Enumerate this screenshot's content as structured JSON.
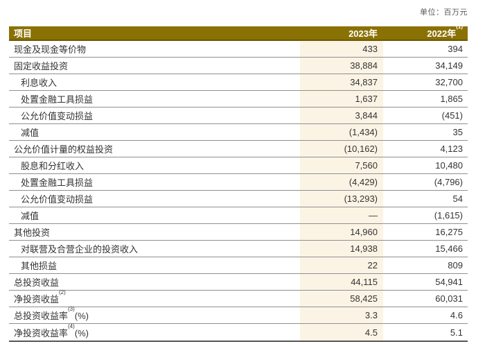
{
  "unit_note": "单位：百万元",
  "table": {
    "header": {
      "item": "项目",
      "col_2023": "2023年",
      "col_2022": "2022年",
      "col_2022_sup": "(1)"
    },
    "rows": [
      {
        "label": "现金及现金等价物",
        "sup": "",
        "suffix": "",
        "indent": false,
        "v2023": "433",
        "v2022": "394"
      },
      {
        "label": "固定收益投资",
        "sup": "",
        "suffix": "",
        "indent": false,
        "v2023": "38,884",
        "v2022": "34,149"
      },
      {
        "label": "利息收入",
        "sup": "",
        "suffix": "",
        "indent": true,
        "v2023": "34,837",
        "v2022": "32,700"
      },
      {
        "label": "处置金融工具损益",
        "sup": "",
        "suffix": "",
        "indent": true,
        "v2023": "1,637",
        "v2022": "1,865"
      },
      {
        "label": "公允价值变动损益",
        "sup": "",
        "suffix": "",
        "indent": true,
        "v2023": "3,844",
        "v2022": "(451)"
      },
      {
        "label": "减值",
        "sup": "",
        "suffix": "",
        "indent": true,
        "v2023": "(1,434)",
        "v2022": "35"
      },
      {
        "label": "公允价值计量的权益投资",
        "sup": "",
        "suffix": "",
        "indent": false,
        "v2023": "(10,162)",
        "v2022": "4,123"
      },
      {
        "label": "股息和分红收入",
        "sup": "",
        "suffix": "",
        "indent": true,
        "v2023": "7,560",
        "v2022": "10,480"
      },
      {
        "label": "处置金融工具损益",
        "sup": "",
        "suffix": "",
        "indent": true,
        "v2023": "(4,429)",
        "v2022": "(4,796)"
      },
      {
        "label": "公允价值变动损益",
        "sup": "",
        "suffix": "",
        "indent": true,
        "v2023": "(13,293)",
        "v2022": "54"
      },
      {
        "label": "减值",
        "sup": "",
        "suffix": "",
        "indent": true,
        "v2023": "—",
        "v2022": "(1,615)"
      },
      {
        "label": "其他投资",
        "sup": "",
        "suffix": "",
        "indent": false,
        "v2023": "14,960",
        "v2022": "16,275"
      },
      {
        "label": "对联营及合营企业的投资收入",
        "sup": "",
        "suffix": "",
        "indent": true,
        "v2023": "14,938",
        "v2022": "15,466"
      },
      {
        "label": "其他损益",
        "sup": "",
        "suffix": "",
        "indent": true,
        "v2023": "22",
        "v2022": "809"
      },
      {
        "label": "总投资收益",
        "sup": "",
        "suffix": "",
        "indent": false,
        "v2023": "44,115",
        "v2022": "54,941"
      },
      {
        "label": "净投资收益",
        "sup": "(2)",
        "suffix": "",
        "indent": false,
        "v2023": "58,425",
        "v2022": "60,031"
      },
      {
        "label": "总投资收益率",
        "sup": "(3)",
        "suffix": "(%)",
        "indent": false,
        "v2023": "3.3",
        "v2022": "4.6"
      },
      {
        "label": "净投资收益率",
        "sup": "(4)",
        "suffix": "(%)",
        "indent": false,
        "v2023": "4.5",
        "v2022": "5.1"
      }
    ]
  },
  "colors": {
    "header_bg": "#8A7103",
    "header_border": "#6B5802",
    "highlight_col": "#FBF4E5",
    "row_divider": "#8F8F8F",
    "bottom_border": "#555555",
    "text": "#333333",
    "unit_text": "#595959"
  }
}
